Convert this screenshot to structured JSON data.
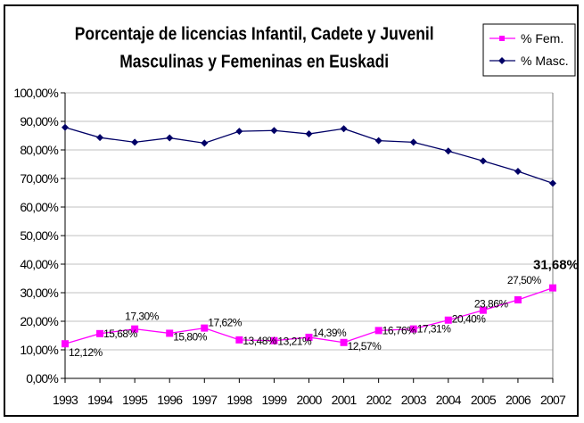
{
  "chart_data": {
    "type": "line",
    "title": [
      "Porcentaje de licencias Infantil, Cadete y Juvenil",
      "Masculinas y Femeninas en Euskadi"
    ],
    "xlabel": "",
    "ylabel": "",
    "categories": [
      "1993",
      "1994",
      "1995",
      "1996",
      "1997",
      "1998",
      "1999",
      "2000",
      "2001",
      "2002",
      "2003",
      "2004",
      "2005",
      "2006",
      "2007"
    ],
    "ylim": [
      0,
      100
    ],
    "yticks": [
      "0,00%",
      "10,00%",
      "20,00%",
      "30,00%",
      "40,00%",
      "50,00%",
      "60,00%",
      "70,00%",
      "80,00%",
      "90,00%",
      "100,00%"
    ],
    "grid": true,
    "legend_position": "top-right",
    "series": [
      {
        "name": "% Fem.",
        "color": "#ff00ff",
        "marker": "square",
        "values": [
          12.12,
          15.68,
          17.3,
          15.8,
          17.62,
          13.48,
          13.21,
          14.39,
          12.57,
          16.76,
          17.31,
          20.4,
          23.86,
          27.5,
          31.68
        ],
        "labels": [
          "12,12%",
          "15,68%",
          "17,30%",
          "15,80%",
          "17,62%",
          "13,48%",
          "13,21%",
          "14,39%",
          "12,57%",
          "16,76%",
          "17,31%",
          "20,40%",
          "23,86%",
          "27,50%",
          "31,68%"
        ]
      },
      {
        "name": "% Masc.",
        "color": "#000066",
        "marker": "diamond",
        "values": [
          87.88,
          84.32,
          82.7,
          84.2,
          82.38,
          86.52,
          86.79,
          85.61,
          87.43,
          83.24,
          82.69,
          79.6,
          76.14,
          72.5,
          68.32
        ]
      }
    ]
  }
}
